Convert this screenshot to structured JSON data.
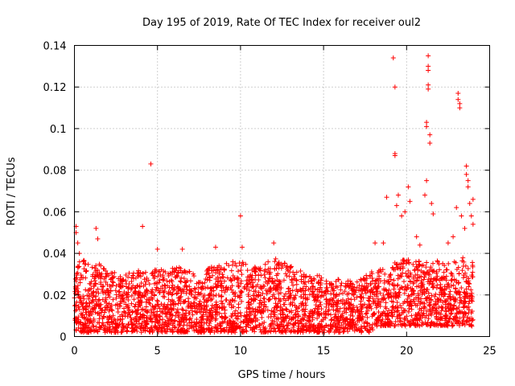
{
  "chart_data": {
    "type": "scatter",
    "title": "Day 195 of 2019, Rate Of TEC Index for receiver oul2",
    "xlabel": "GPS time / hours",
    "ylabel": "ROTI / TECUs",
    "xlim": [
      0,
      25
    ],
    "ylim": [
      0,
      0.14
    ],
    "xticks": [
      "0",
      "5",
      "10",
      "15",
      "20",
      "25"
    ],
    "yticks": [
      "0",
      "0.02",
      "0.04",
      "0.06",
      "0.08",
      "0.1",
      "0.12",
      "0.14"
    ],
    "grid": true,
    "marker": "plus",
    "color": "#ff0000",
    "series": [
      {
        "name": "ROTI",
        "points": [
          [
            0.1,
            0.053
          ],
          [
            0.1,
            0.05
          ],
          [
            0.2,
            0.045
          ],
          [
            0.3,
            0.04
          ],
          [
            1.3,
            0.052
          ],
          [
            1.4,
            0.047
          ],
          [
            4.1,
            0.053
          ],
          [
            4.6,
            0.083
          ],
          [
            5.0,
            0.042
          ],
          [
            6.5,
            0.042
          ],
          [
            8.5,
            0.043
          ],
          [
            10.0,
            0.058
          ],
          [
            10.1,
            0.043
          ],
          [
            12.0,
            0.045
          ],
          [
            18.1,
            0.045
          ],
          [
            18.6,
            0.045
          ],
          [
            18.8,
            0.067
          ],
          [
            19.2,
            0.134
          ],
          [
            19.3,
            0.12
          ],
          [
            19.3,
            0.088
          ],
          [
            19.3,
            0.087
          ],
          [
            19.4,
            0.063
          ],
          [
            19.5,
            0.068
          ],
          [
            19.7,
            0.058
          ],
          [
            19.9,
            0.06
          ],
          [
            20.1,
            0.072
          ],
          [
            20.2,
            0.065
          ],
          [
            20.6,
            0.048
          ],
          [
            20.8,
            0.044
          ],
          [
            21.1,
            0.068
          ],
          [
            21.2,
            0.103
          ],
          [
            21.2,
            0.101
          ],
          [
            21.2,
            0.075
          ],
          [
            21.3,
            0.135
          ],
          [
            21.3,
            0.13
          ],
          [
            21.3,
            0.128
          ],
          [
            21.3,
            0.121
          ],
          [
            21.3,
            0.119
          ],
          [
            21.4,
            0.097
          ],
          [
            21.4,
            0.093
          ],
          [
            21.5,
            0.064
          ],
          [
            21.6,
            0.059
          ],
          [
            22.5,
            0.045
          ],
          [
            22.8,
            0.048
          ],
          [
            23.0,
            0.062
          ],
          [
            23.1,
            0.117
          ],
          [
            23.1,
            0.114
          ],
          [
            23.2,
            0.112
          ],
          [
            23.2,
            0.11
          ],
          [
            23.3,
            0.058
          ],
          [
            23.5,
            0.052
          ],
          [
            23.6,
            0.082
          ],
          [
            23.6,
            0.078
          ],
          [
            23.7,
            0.075
          ],
          [
            23.7,
            0.072
          ],
          [
            23.8,
            0.064
          ],
          [
            23.9,
            0.058
          ],
          [
            24.0,
            0.066
          ],
          [
            24.0,
            0.054
          ]
        ],
        "envelope": [
          [
            0.0,
            0.035
          ],
          [
            0.5,
            0.038
          ],
          [
            1.0,
            0.033
          ],
          [
            1.5,
            0.036
          ],
          [
            2.0,
            0.032
          ],
          [
            2.5,
            0.031
          ],
          [
            3.0,
            0.03
          ],
          [
            3.5,
            0.031
          ],
          [
            4.0,
            0.032
          ],
          [
            4.5,
            0.03
          ],
          [
            5.0,
            0.034
          ],
          [
            5.5,
            0.031
          ],
          [
            6.0,
            0.034
          ],
          [
            6.5,
            0.033
          ],
          [
            7.0,
            0.031
          ],
          [
            7.5,
            0.028
          ],
          [
            8.0,
            0.033
          ],
          [
            8.5,
            0.034
          ],
          [
            9.0,
            0.035
          ],
          [
            9.5,
            0.036
          ],
          [
            10.0,
            0.037
          ],
          [
            10.5,
            0.035
          ],
          [
            11.0,
            0.034
          ],
          [
            11.5,
            0.036
          ],
          [
            12.0,
            0.038
          ],
          [
            12.5,
            0.036
          ],
          [
            13.0,
            0.034
          ],
          [
            13.5,
            0.032
          ],
          [
            14.0,
            0.031
          ],
          [
            14.5,
            0.03
          ],
          [
            15.0,
            0.029
          ],
          [
            15.5,
            0.027
          ],
          [
            16.0,
            0.028
          ],
          [
            16.5,
            0.027
          ],
          [
            17.0,
            0.028
          ],
          [
            17.5,
            0.029
          ],
          [
            18.0,
            0.032
          ],
          [
            18.5,
            0.033
          ],
          [
            19.0,
            0.035
          ],
          [
            19.5,
            0.036
          ],
          [
            20.0,
            0.038
          ],
          [
            20.5,
            0.036
          ],
          [
            21.0,
            0.037
          ],
          [
            21.5,
            0.038
          ],
          [
            22.0,
            0.036
          ],
          [
            22.5,
            0.035
          ],
          [
            23.0,
            0.037
          ],
          [
            23.5,
            0.039
          ],
          [
            24.0,
            0.036
          ]
        ]
      }
    ]
  }
}
